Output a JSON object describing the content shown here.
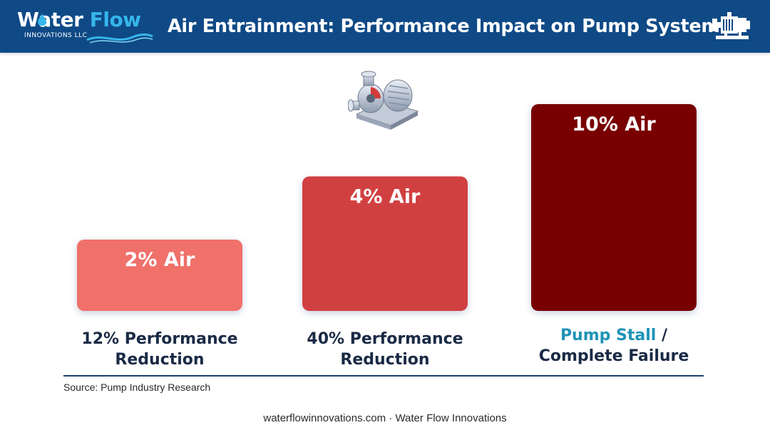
{
  "header": {
    "logo": {
      "word1": "Water",
      "word2": "Flow",
      "subtitle": "INNOVATIONS LLC"
    },
    "title": "Air Entrainment: Performance Impact on Pump Systems",
    "background": "#0f4a86",
    "icon": "pump-icon"
  },
  "chart_data": {
    "type": "bar",
    "categories": [
      "2% Air",
      "4% Air",
      "10% Air"
    ],
    "values": [
      2,
      4,
      10
    ],
    "units": "% Air",
    "data_labels": [
      "2% Air",
      "4% Air",
      "10% Air"
    ],
    "category_labels": [
      {
        "lines": [
          "12% Performance",
          "Reduction"
        ]
      },
      {
        "lines": [
          "40% Performance",
          "Reduction"
        ]
      },
      {
        "lines": [
          "Pump Stall /",
          "Complete Failure"
        ],
        "accent_prefix": "Pump Stall"
      }
    ],
    "colors": [
      "#f0706a",
      "#d13f3f",
      "#780000"
    ],
    "accent_color": "#1e93b6",
    "title": "",
    "xlabel": "",
    "ylabel": "",
    "grid": false,
    "legend": "none"
  },
  "illustration": {
    "icon": "centrifugal-pump-icon"
  },
  "source": "Source: Pump Industry Research",
  "footer": "waterflowinnovations.com · Water Flow Innovations"
}
